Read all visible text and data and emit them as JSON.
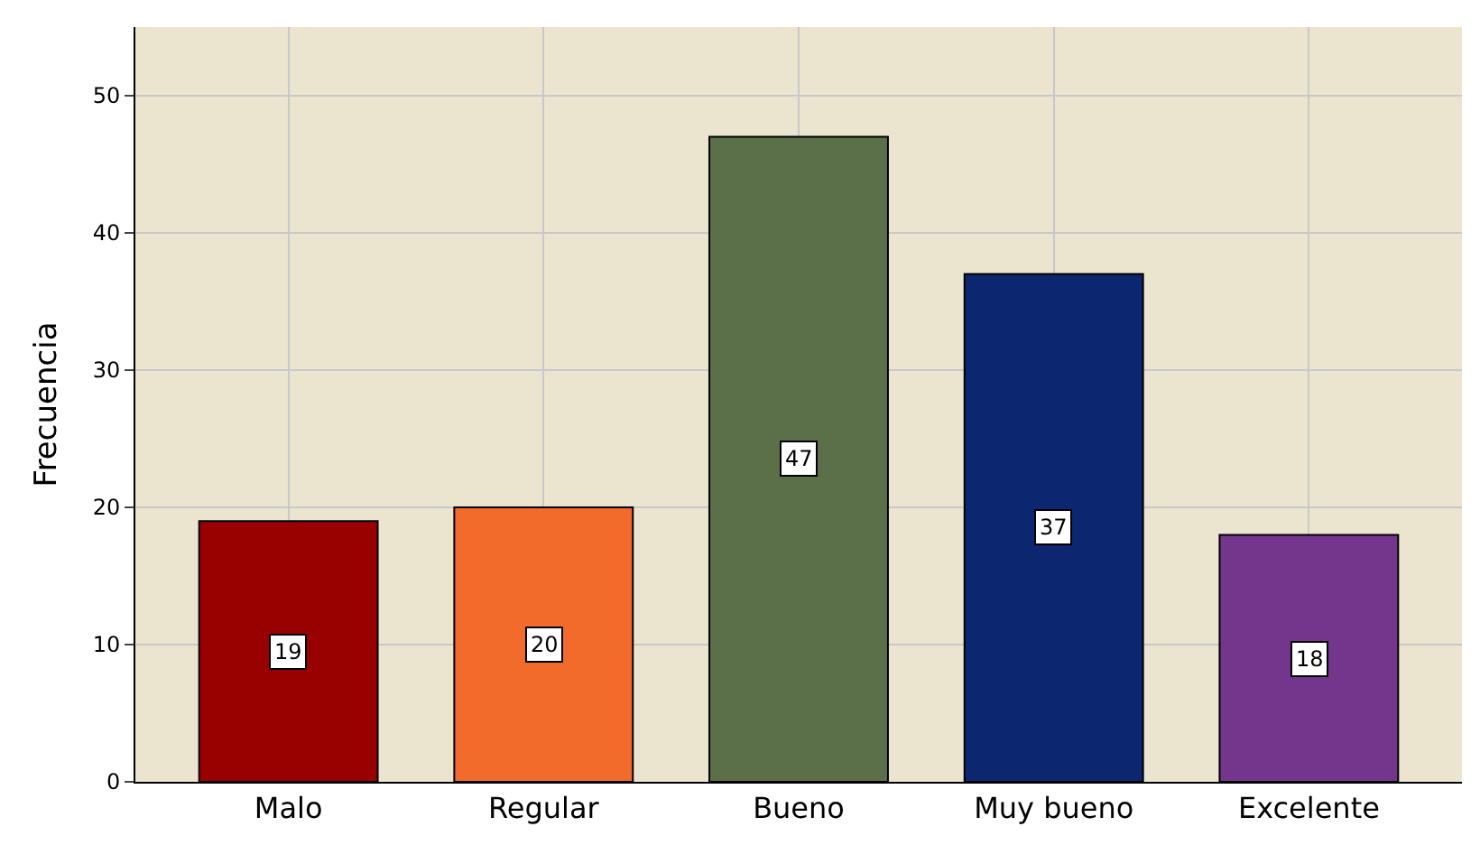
{
  "chart_data": {
    "type": "bar",
    "ylabel": "Frecuencia",
    "categories": [
      "Malo",
      "Regular",
      "Bueno",
      "Muy bueno",
      "Excelente"
    ],
    "values": [
      19,
      20,
      47,
      37,
      18
    ],
    "colors": [
      "#990000",
      "#f26b2a",
      "#5b7049",
      "#0c2670",
      "#74368c"
    ],
    "ylim": [
      0,
      55
    ],
    "yticks": [
      0,
      10,
      20,
      30,
      40,
      50
    ],
    "grid": true,
    "data_labels": true
  }
}
